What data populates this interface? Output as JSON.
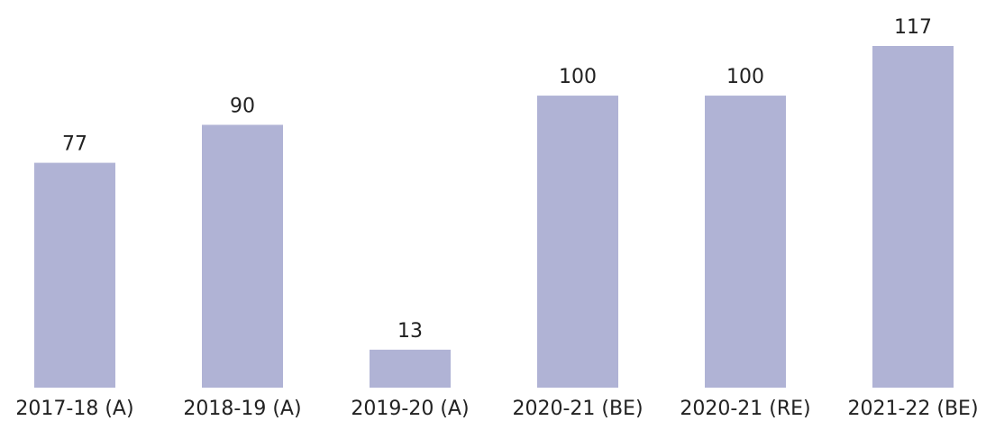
{
  "chart_data": {
    "type": "bar",
    "categories": [
      "2017-18 (A)",
      "2018-19 (A)",
      "2019-20 (A)",
      "2020-21 (BE)",
      "2020-21 (RE)",
      "2021-22 (BE)"
    ],
    "values": [
      77,
      90,
      13,
      100,
      100,
      117
    ],
    "color": "#b0b3d5"
  }
}
